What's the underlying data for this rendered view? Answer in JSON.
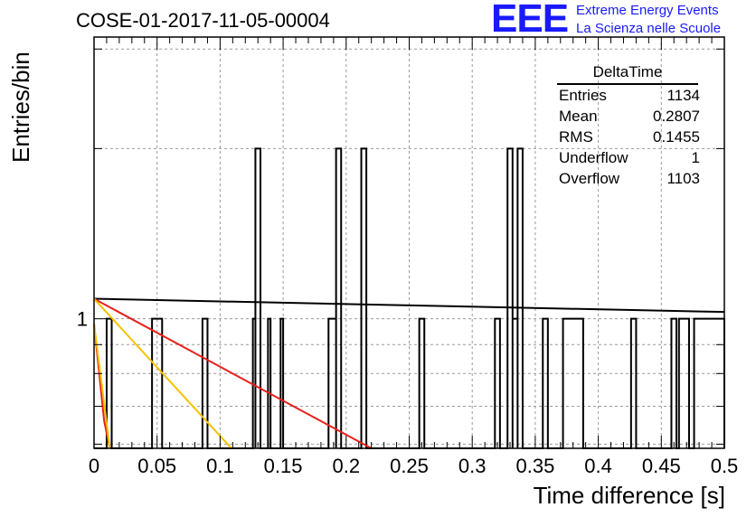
{
  "title": "COSE-01-2017-11-05-00004",
  "logo": {
    "big": "EEE",
    "line1": "Extreme Energy Events",
    "line2": "La Scienza nelle Scuole",
    "color": "#1a1aff"
  },
  "stats": {
    "title": "DeltaTime",
    "rows": [
      {
        "label": "Entries",
        "value": "1134"
      },
      {
        "label": "Mean",
        "value": "0.2807"
      },
      {
        "label": "RMS",
        "value": "0.1455"
      },
      {
        "label": "Underflow",
        "value": "1"
      },
      {
        "label": "Overflow",
        "value": "1103"
      }
    ]
  },
  "chart_data": {
    "type": "histogram",
    "xlabel": "Time difference [s]",
    "ylabel": "Entries/bin",
    "xlim": [
      0,
      0.5
    ],
    "ylog": true,
    "ylim": [
      0.59,
      3.15
    ],
    "grid": true,
    "x_ticks": [
      "0",
      "0.05",
      "0.1",
      "0.15",
      "0.2",
      "0.25",
      "0.3",
      "0.35",
      "0.4",
      "0.45",
      "0.5"
    ],
    "y_ticks": [
      "1"
    ],
    "bin_width": 0.002,
    "bins_with_entries": [
      {
        "x0": 0.01,
        "x1": 0.014,
        "count": 1
      },
      {
        "x0": 0.046,
        "x1": 0.054,
        "count": 1
      },
      {
        "x0": 0.086,
        "x1": 0.09,
        "count": 1
      },
      {
        "x0": 0.126,
        "x1": 0.128,
        "count": 1
      },
      {
        "x0": 0.128,
        "x1": 0.132,
        "count": 2
      },
      {
        "x0": 0.138,
        "x1": 0.14,
        "count": 1
      },
      {
        "x0": 0.148,
        "x1": 0.15,
        "count": 1
      },
      {
        "x0": 0.186,
        "x1": 0.192,
        "count": 1
      },
      {
        "x0": 0.192,
        "x1": 0.196,
        "count": 2
      },
      {
        "x0": 0.212,
        "x1": 0.216,
        "count": 2
      },
      {
        "x0": 0.258,
        "x1": 0.262,
        "count": 1
      },
      {
        "x0": 0.318,
        "x1": 0.322,
        "count": 1
      },
      {
        "x0": 0.328,
        "x1": 0.332,
        "count": 2
      },
      {
        "x0": 0.332,
        "x1": 0.336,
        "count": 1
      },
      {
        "x0": 0.336,
        "x1": 0.34,
        "count": 2
      },
      {
        "x0": 0.356,
        "x1": 0.36,
        "count": 1
      },
      {
        "x0": 0.372,
        "x1": 0.388,
        "count": 1
      },
      {
        "x0": 0.426,
        "x1": 0.43,
        "count": 1
      },
      {
        "x0": 0.458,
        "x1": 0.462,
        "count": 1
      },
      {
        "x0": 0.464,
        "x1": 0.472,
        "count": 1
      },
      {
        "x0": 0.476,
        "x1": 0.5,
        "count": 1
      }
    ],
    "fit_lines": [
      {
        "color": "#000000",
        "x": [
          0.0,
          0.5
        ],
        "y": [
          1.085,
          1.028
        ]
      },
      {
        "color": "#e8201a",
        "x": [
          0.0,
          0.22
        ],
        "y": [
          1.085,
          0.59
        ]
      },
      {
        "color": "#f5c200",
        "x": [
          0.0,
          0.109
        ],
        "y": [
          1.085,
          0.59
        ]
      },
      {
        "color": "#e8201a",
        "x": [
          0.0,
          0.008,
          0.0125
        ],
        "y": [
          0.98,
          0.66,
          0.59
        ]
      },
      {
        "color": "#f5c200",
        "x": [
          0.0,
          0.0125
        ],
        "y": [
          0.98,
          0.59
        ]
      }
    ]
  }
}
